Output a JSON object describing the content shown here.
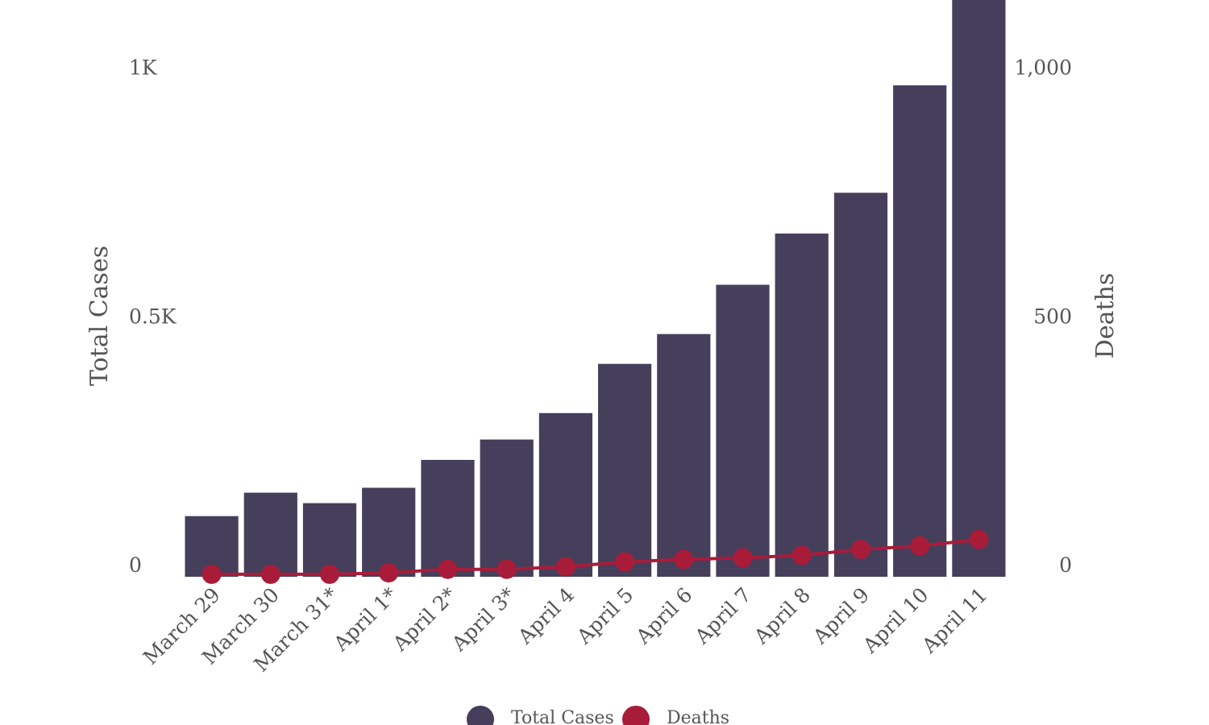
{
  "colors": {
    "cases": "#453f5c",
    "deaths": "#a81c3a",
    "text": "#555555",
    "background": "#ffffff"
  },
  "chart_data": {
    "type": "bar",
    "categories": [
      "March 29",
      "March 30",
      "March 31*",
      "April 1*",
      "April 2*",
      "April 3*",
      "April 4",
      "April 5",
      "April 6",
      "April 7",
      "April 8",
      "April 9",
      "April 10",
      "April 11"
    ],
    "series": [
      {
        "name": "Total Cases",
        "type": "bar",
        "axis": "left",
        "color": "#453f5c",
        "values": [
          122,
          169,
          148,
          179,
          235,
          276,
          329,
          428,
          488,
          587,
          690,
          772,
          988,
          1160
        ]
      },
      {
        "name": "Deaths",
        "type": "line",
        "axis": "right",
        "color": "#a81c3a",
        "values": [
          5,
          5,
          5,
          8,
          15,
          15,
          20,
          30,
          35,
          38,
          43,
          55,
          62,
          75
        ]
      }
    ],
    "yaxis_left": {
      "title": "Total Cases",
      "ticks": [
        0,
        500,
        1000
      ],
      "tick_labels": [
        "0",
        "0.5K",
        "1K"
      ],
      "range": [
        0,
        1160
      ]
    },
    "yaxis_right": {
      "title": "Deaths",
      "ticks": [
        0,
        500,
        1000
      ],
      "tick_labels": [
        "0",
        "500",
        "1,000"
      ],
      "range": [
        0,
        1160
      ]
    },
    "legend": {
      "position": "bottom",
      "items": [
        "Total Cases",
        "Deaths"
      ]
    },
    "grid": false
  }
}
